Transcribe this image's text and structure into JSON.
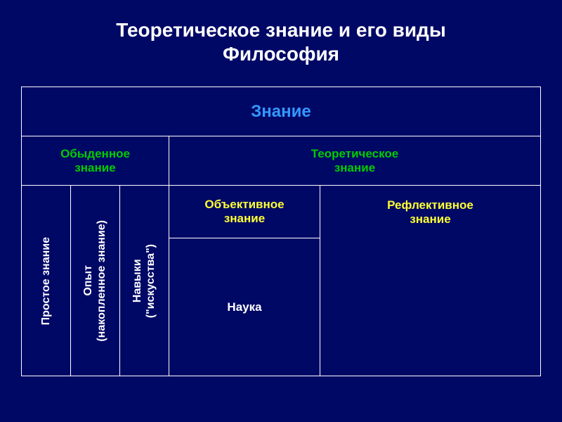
{
  "background_color": "#000866",
  "border_color": "#ffffff",
  "title": {
    "line1": "Теоретическое знание и его виды",
    "line2": "Философия",
    "color": "#ffffff",
    "fontsize": 28
  },
  "header": {
    "label": "Знание",
    "color": "#3399ff",
    "fontsize": 24
  },
  "level2": {
    "ordinary": {
      "line1": "Обыденное",
      "line2": "знание"
    },
    "theoretical": {
      "line1": "Теоретическое",
      "line2": "знание"
    },
    "color": "#00cc00",
    "fontsize": 17
  },
  "vertical_cells": {
    "simple": "Простое знание",
    "experience_line1": "Опыт",
    "experience_line2": "(накопленное знание)",
    "skills_line1": "Навыки",
    "skills_line2": "(\"искусства\")",
    "color": "#ffffff",
    "fontsize": 16
  },
  "level3": {
    "objective": {
      "line1": "Объективное",
      "line2": "знание"
    },
    "reflective": {
      "line1": "Рефлективное",
      "line2": "знание"
    },
    "color": "#ffff33",
    "fontsize": 17
  },
  "science": {
    "label": "Наука",
    "color": "#ffffff",
    "fontsize": 17
  }
}
